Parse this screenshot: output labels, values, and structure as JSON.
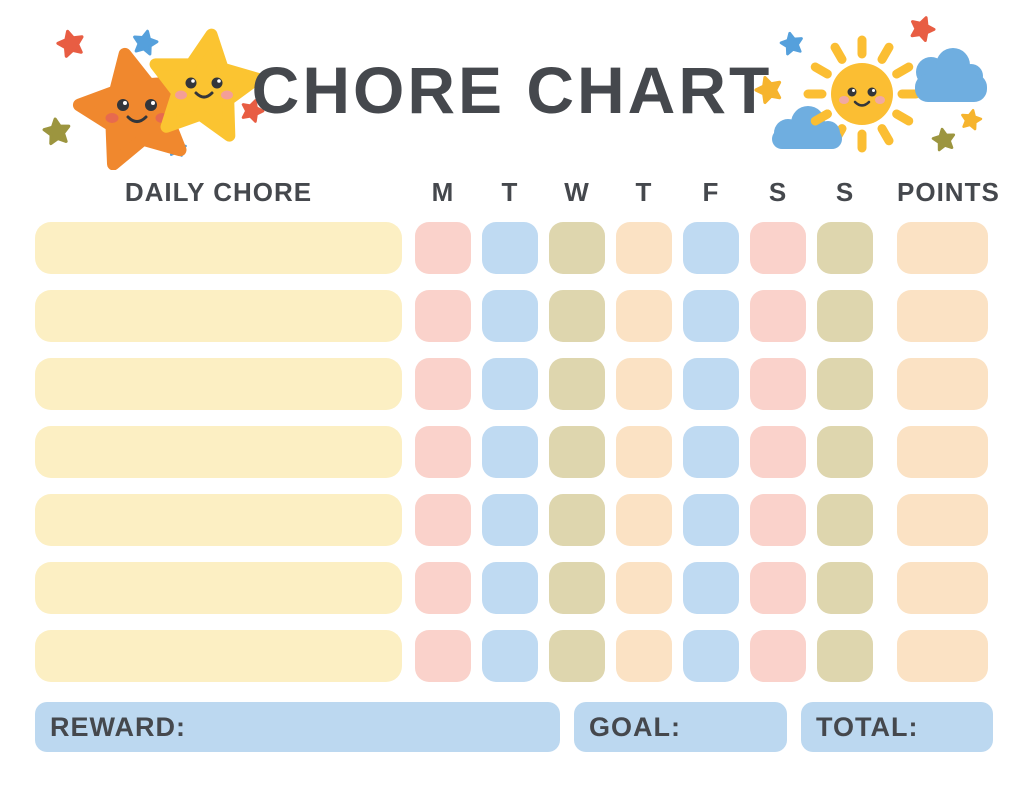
{
  "title": "CHORE CHART",
  "header": {
    "daily_chore": "DAILY CHORE",
    "days": [
      "M",
      "T",
      "W",
      "T",
      "F",
      "S",
      "S"
    ],
    "points": "POINTS"
  },
  "grid": {
    "row_count": 7,
    "chore_cell_color": "cream",
    "day_cell_colors": [
      "pink",
      "blue",
      "olive",
      "peach",
      "blue",
      "pink",
      "olive"
    ],
    "points_cell_color": "peach"
  },
  "footer": {
    "reward_label": "REWARD:",
    "goal_label": "GOAL:",
    "total_label": "TOTAL:"
  },
  "palette": {
    "cream": "#FCEFC3",
    "pink": "#FAD2CB",
    "blue": "#BFDAF2",
    "olive": "#DED6AE",
    "peach": "#FBE2C4",
    "footer_blue": "#BCD8F0",
    "text": "#45484D"
  },
  "decorations": {
    "left": "smiling-stars-icon",
    "right": "sun-and-clouds-icon",
    "colors": {
      "star_orange": "#F0882E",
      "star_orange_cheek": "#E76A4E",
      "star_yellow": "#FBC431",
      "star_yellow_cheek": "#F49E97",
      "sparkle_red": "#E85D43",
      "sparkle_blue": "#55A0DC",
      "sparkle_olive": "#9C953F",
      "sparkle_yellow": "#F6B42E",
      "sun": "#FBBE33",
      "sun_cheek": "#F2A9A2",
      "cloud": "#6FAEE0",
      "face": "#33363B"
    }
  }
}
